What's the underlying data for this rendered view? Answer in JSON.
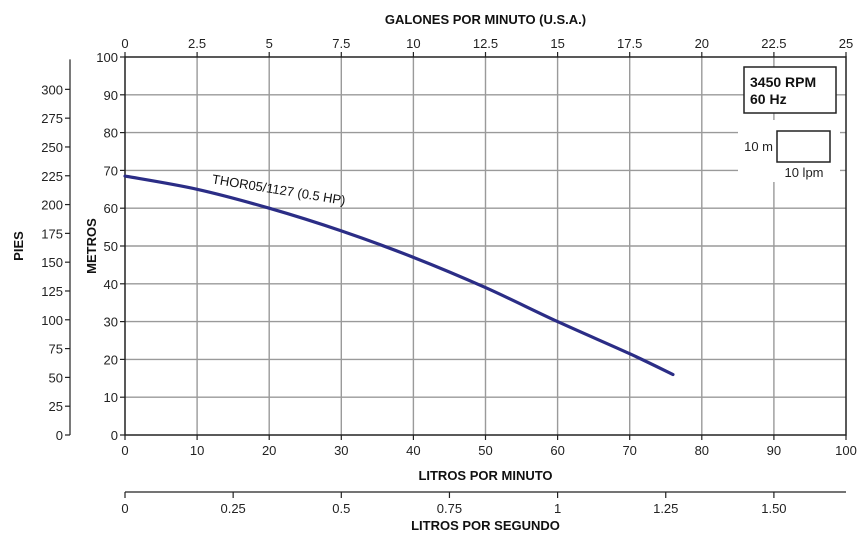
{
  "chart_data": {
    "type": "line",
    "x_title": "LITROS POR MINUTO",
    "x_ticks": [
      "0",
      "10",
      "20",
      "30",
      "40",
      "50",
      "60",
      "70",
      "80",
      "90",
      "100"
    ],
    "x_range": [
      0,
      100
    ],
    "y_title": "METROS",
    "y_ticks": [
      "0",
      "10",
      "20",
      "30",
      "40",
      "50",
      "60",
      "70",
      "80",
      "90",
      "100"
    ],
    "y_range": [
      0,
      100
    ],
    "top_axis": {
      "title": "GALONES POR MINUTO (U.S.A.)",
      "ticks": [
        "0",
        "2.5",
        "5",
        "7.5",
        "10",
        "12.5",
        "15",
        "17.5",
        "20",
        "22.5",
        "25"
      ]
    },
    "left_axis": {
      "title": "PIES",
      "ticks": [
        "0",
        "25",
        "50",
        "75",
        "100",
        "125",
        "150",
        "175",
        "200",
        "225",
        "250",
        "275",
        "300"
      ]
    },
    "bottom_axis": {
      "title": "LITROS POR SEGUNDO",
      "ticks": [
        "0",
        "0.25",
        "0.5",
        "0.75",
        "1",
        "1.25",
        "1.50"
      ]
    },
    "series": [
      {
        "name": "THOR05/1127 (0.5 HP)",
        "color": "#2b2d86",
        "x": [
          0,
          10,
          20,
          30,
          40,
          50,
          60,
          70,
          76
        ],
        "y": [
          68.5,
          65,
          60,
          54,
          47,
          39,
          30,
          21.5,
          16
        ]
      }
    ],
    "rpm_box": {
      "line1": "3450 RPM",
      "line2": "60 Hz"
    },
    "scale_box": {
      "y_label": "10 m",
      "x_label": "10 lpm"
    },
    "grid": true
  }
}
